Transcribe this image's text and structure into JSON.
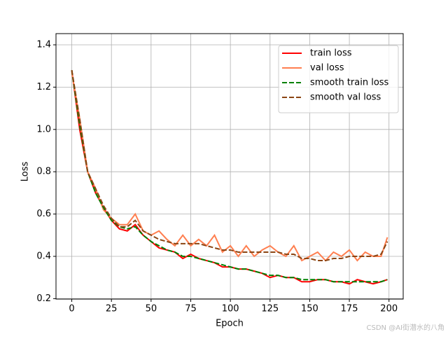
{
  "chart_data": {
    "type": "line",
    "xlabel": "Epoch",
    "ylabel": "Loss",
    "x": [
      0,
      5,
      10,
      15,
      20,
      25,
      30,
      35,
      40,
      45,
      50,
      55,
      60,
      65,
      70,
      75,
      80,
      85,
      90,
      95,
      100,
      105,
      110,
      115,
      120,
      125,
      130,
      135,
      140,
      145,
      150,
      155,
      160,
      165,
      170,
      175,
      180,
      185,
      190,
      195,
      199
    ],
    "series": [
      {
        "name": "train loss",
        "color": "#ff0000",
        "dashed": false,
        "values": [
          1.28,
          1.0,
          0.8,
          0.7,
          0.63,
          0.57,
          0.53,
          0.52,
          0.55,
          0.5,
          0.47,
          0.44,
          0.43,
          0.42,
          0.39,
          0.41,
          0.39,
          0.38,
          0.37,
          0.35,
          0.35,
          0.34,
          0.34,
          0.33,
          0.32,
          0.3,
          0.31,
          0.3,
          0.3,
          0.28,
          0.28,
          0.29,
          0.29,
          0.28,
          0.28,
          0.27,
          0.29,
          0.28,
          0.27,
          0.28,
          0.29
        ]
      },
      {
        "name": "val loss",
        "color": "#ff7f50",
        "dashed": false,
        "values": [
          1.27,
          1.05,
          0.8,
          0.72,
          0.62,
          0.58,
          0.55,
          0.55,
          0.6,
          0.52,
          0.5,
          0.52,
          0.48,
          0.45,
          0.5,
          0.45,
          0.48,
          0.45,
          0.5,
          0.42,
          0.45,
          0.4,
          0.45,
          0.4,
          0.43,
          0.45,
          0.42,
          0.4,
          0.45,
          0.38,
          0.4,
          0.42,
          0.38,
          0.42,
          0.4,
          0.43,
          0.38,
          0.42,
          0.4,
          0.4,
          0.49
        ]
      },
      {
        "name": "smooth train loss",
        "color": "#008000",
        "dashed": true,
        "values": [
          1.28,
          1.02,
          0.8,
          0.7,
          0.63,
          0.57,
          0.54,
          0.53,
          0.54,
          0.5,
          0.47,
          0.45,
          0.43,
          0.42,
          0.4,
          0.4,
          0.39,
          0.38,
          0.37,
          0.36,
          0.35,
          0.34,
          0.34,
          0.33,
          0.32,
          0.31,
          0.31,
          0.3,
          0.3,
          0.29,
          0.29,
          0.29,
          0.29,
          0.28,
          0.28,
          0.28,
          0.28,
          0.28,
          0.28,
          0.28,
          0.29
        ]
      },
      {
        "name": "smooth val loss",
        "color": "#8b4513",
        "dashed": true,
        "values": [
          1.28,
          1.05,
          0.8,
          0.72,
          0.64,
          0.58,
          0.54,
          0.54,
          0.57,
          0.52,
          0.5,
          0.48,
          0.47,
          0.46,
          0.46,
          0.46,
          0.46,
          0.45,
          0.44,
          0.43,
          0.43,
          0.42,
          0.42,
          0.42,
          0.42,
          0.42,
          0.42,
          0.41,
          0.41,
          0.39,
          0.39,
          0.38,
          0.38,
          0.39,
          0.39,
          0.4,
          0.4,
          0.4,
          0.4,
          0.41,
          0.47
        ]
      }
    ],
    "xlim": [
      -9.95,
      208.95
    ],
    "xticks": [
      0,
      25,
      50,
      75,
      100,
      125,
      150,
      175,
      200
    ],
    "ylim": [
      0.198,
      1.453
    ],
    "yticks": [
      {
        "value": 0.2,
        "label": "0.2"
      },
      {
        "value": 0.4,
        "label": "0.4"
      },
      {
        "value": 0.6,
        "label": "0.6"
      },
      {
        "value": 0.8,
        "label": "0.8"
      },
      {
        "value": 1.0,
        "label": "1.0"
      },
      {
        "value": 1.2,
        "label": "1.2"
      },
      {
        "value": 1.4,
        "label": "1.4"
      }
    ],
    "grid": true,
    "legend": "upper right",
    "watermark": "CSDN @AI街潜水的八角"
  }
}
